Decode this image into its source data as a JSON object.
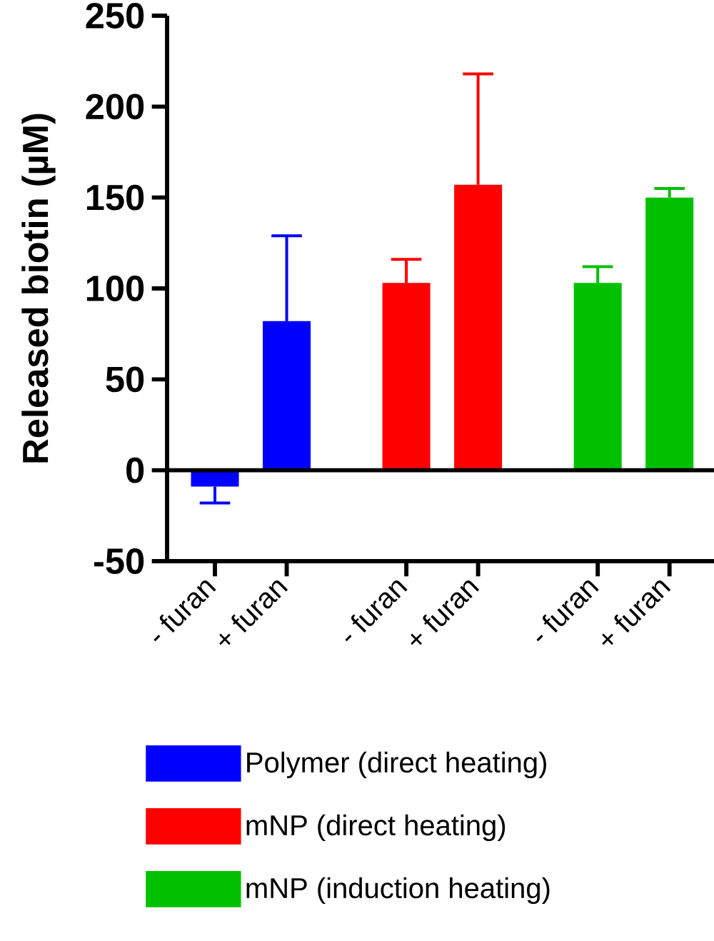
{
  "chart_data": {
    "type": "bar",
    "ylabel": "Released biotin (µM)",
    "categories": [
      "- furan",
      "+ furan",
      "- furan",
      "+ furan",
      "- furan",
      "+ furan"
    ],
    "series": [
      {
        "name": "Polymer (direct heating)",
        "color": "#0000ff",
        "values": [
          -9,
          82,
          null,
          null,
          null,
          null
        ],
        "errors": [
          [
            -18,
            -9
          ],
          [
            82,
            129
          ],
          null,
          null,
          null,
          null
        ]
      },
      {
        "name": "mNP (direct heating)",
        "color": "#ff0000",
        "values": [
          null,
          null,
          103,
          157,
          null,
          null
        ],
        "errors": [
          null,
          null,
          [
            103,
            116
          ],
          [
            157,
            218
          ],
          null,
          null
        ]
      },
      {
        "name": "mNP (induction heating)",
        "color": "#00c000",
        "values": [
          null,
          null,
          null,
          null,
          103,
          150
        ],
        "errors": [
          null,
          null,
          null,
          null,
          [
            103,
            112
          ],
          [
            150,
            155
          ]
        ]
      }
    ],
    "ylim": [
      -50,
      250
    ],
    "yticks": [
      -50,
      0,
      50,
      100,
      150,
      200,
      250
    ],
    "legend": "bottom",
    "ref_lines": [
      {
        "axis": "y",
        "value": 0
      }
    ]
  }
}
